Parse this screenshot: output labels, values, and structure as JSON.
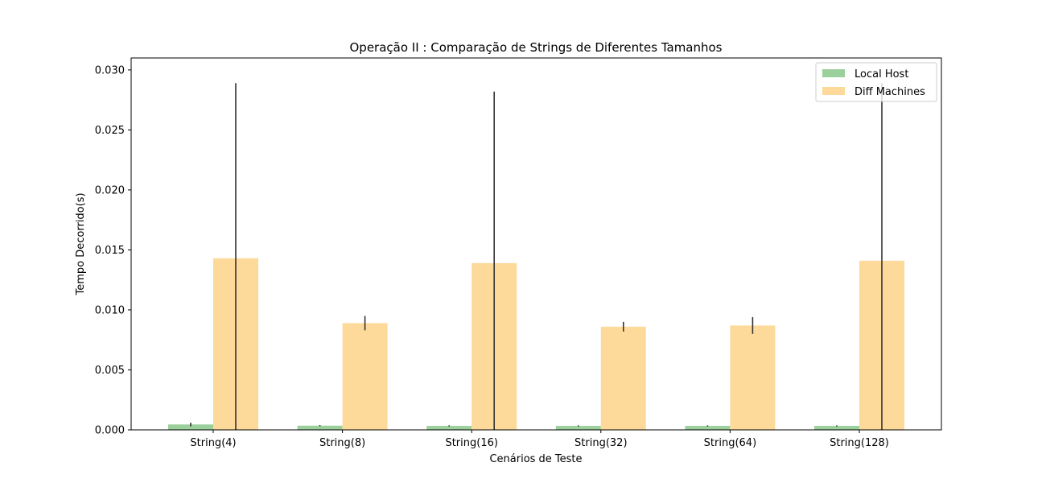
{
  "chart_data": {
    "type": "bar",
    "title": "Operação II : Comparação de Strings de Diferentes Tamanhos",
    "xlabel": "Cenários de Teste",
    "ylabel": "Tempo Decorrido(s)",
    "categories": [
      "String(4)",
      "String(8)",
      "String(16)",
      "String(32)",
      "String(64)",
      "String(128)"
    ],
    "ylim": [
      0,
      0.031
    ],
    "yticks": [
      "0.000",
      "0.005",
      "0.010",
      "0.015",
      "0.020",
      "0.025",
      "0.030"
    ],
    "grid": false,
    "legend_position": "top-right",
    "series": [
      {
        "name": "Local Host",
        "color": "#9bcf9b",
        "values": [
          0.00045,
          0.00035,
          0.00033,
          0.00033,
          0.00033,
          0.00033
        ],
        "errors": [
          0.00015,
          5e-05,
          5e-05,
          5e-05,
          5e-05,
          5e-05
        ]
      },
      {
        "name": "Diff Machines",
        "color": "#fdd99a",
        "values": [
          0.0143,
          0.0089,
          0.0139,
          0.0086,
          0.0087,
          0.0141
        ],
        "errors": [
          0.0146,
          0.0006,
          0.0143,
          0.0004,
          0.0007,
          0.0148
        ]
      }
    ]
  }
}
